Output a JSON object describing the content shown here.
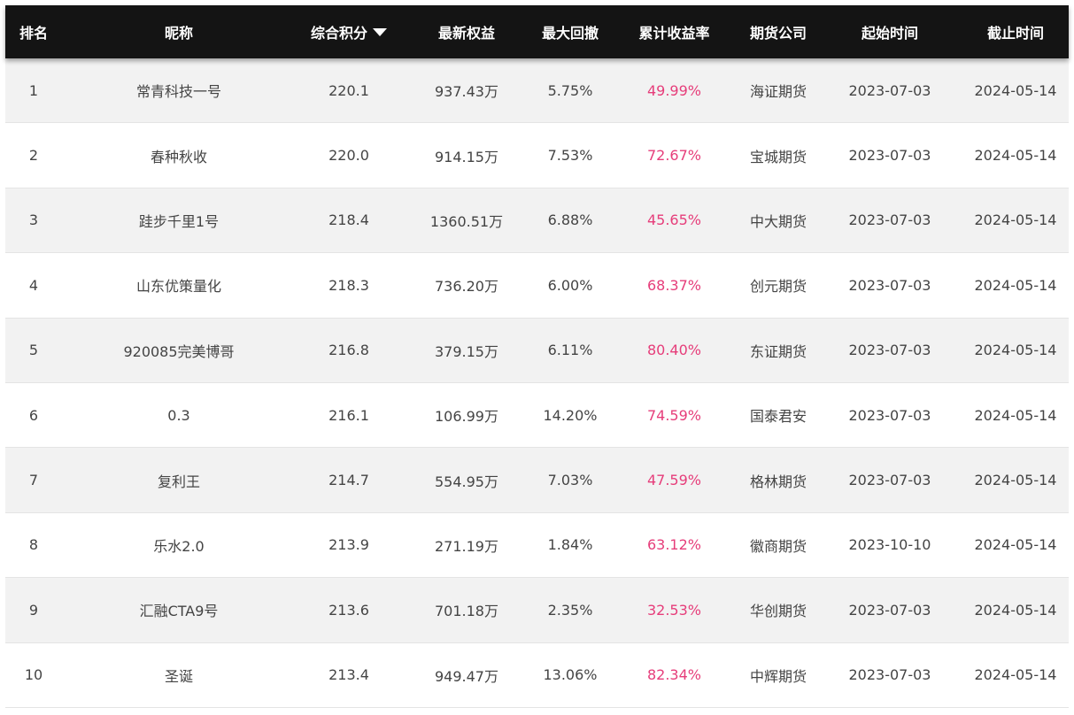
{
  "headers": {
    "rank": "排名",
    "name": "昵称",
    "score": "综合积分",
    "equity": "最新权益",
    "drawdown": "最大回撤",
    "return": "累计收益率",
    "company": "期货公司",
    "start": "起始时间",
    "end": "截止时间"
  },
  "sort_icon": "sort-desc-triangle",
  "colors": {
    "header_bg": "#141414",
    "return_text": "#e63d7a",
    "row_alt": "#f2f2f2"
  },
  "rows": [
    {
      "rank": "1",
      "name": "常青科技一号",
      "score": "220.1",
      "equity": "937.43万",
      "drawdown": "5.75%",
      "return": "49.99%",
      "company": "海证期货",
      "start": "2023-07-03",
      "end": "2024-05-14"
    },
    {
      "rank": "2",
      "name": "春种秋收",
      "score": "220.0",
      "equity": "914.15万",
      "drawdown": "7.53%",
      "return": "72.67%",
      "company": "宝城期货",
      "start": "2023-07-03",
      "end": "2024-05-14"
    },
    {
      "rank": "3",
      "name": "跬步千里1号",
      "score": "218.4",
      "equity": "1360.51万",
      "drawdown": "6.88%",
      "return": "45.65%",
      "company": "中大期货",
      "start": "2023-07-03",
      "end": "2024-05-14"
    },
    {
      "rank": "4",
      "name": "山东优策量化",
      "score": "218.3",
      "equity": "736.20万",
      "drawdown": "6.00%",
      "return": "68.37%",
      "company": "创元期货",
      "start": "2023-07-03",
      "end": "2024-05-14"
    },
    {
      "rank": "5",
      "name": "920085完美博哥",
      "score": "216.8",
      "equity": "379.15万",
      "drawdown": "6.11%",
      "return": "80.40%",
      "company": "东证期货",
      "start": "2023-07-03",
      "end": "2024-05-14"
    },
    {
      "rank": "6",
      "name": "0.3",
      "score": "216.1",
      "equity": "106.99万",
      "drawdown": "14.20%",
      "return": "74.59%",
      "company": "国泰君安",
      "start": "2023-07-03",
      "end": "2024-05-14"
    },
    {
      "rank": "7",
      "name": "复利王",
      "score": "214.7",
      "equity": "554.95万",
      "drawdown": "7.03%",
      "return": "47.59%",
      "company": "格林期货",
      "start": "2023-07-03",
      "end": "2024-05-14"
    },
    {
      "rank": "8",
      "name": "乐水2.0",
      "score": "213.9",
      "equity": "271.19万",
      "drawdown": "1.84%",
      "return": "63.12%",
      "company": "徽商期货",
      "start": "2023-10-10",
      "end": "2024-05-14"
    },
    {
      "rank": "9",
      "name": "汇融CTA9号",
      "score": "213.6",
      "equity": "701.18万",
      "drawdown": "2.35%",
      "return": "32.53%",
      "company": "华创期货",
      "start": "2023-07-03",
      "end": "2024-05-14"
    },
    {
      "rank": "10",
      "name": "圣诞",
      "score": "213.4",
      "equity": "949.47万",
      "drawdown": "13.06%",
      "return": "82.34%",
      "company": "中辉期货",
      "start": "2023-07-03",
      "end": "2024-05-14"
    }
  ]
}
